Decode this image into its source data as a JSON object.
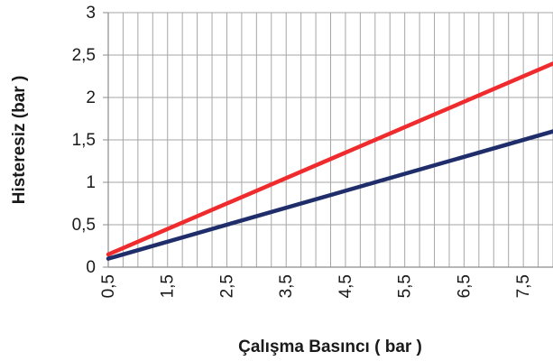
{
  "chart_data": {
    "type": "line",
    "xlabel": "Çalışma Basıncı ( bar )",
    "ylabel": "Histeresiz (bar )",
    "xlim": [
      0.5,
      8.0
    ],
    "ylim": [
      0,
      3
    ],
    "x_ticks": [
      0.5,
      1.5,
      2.5,
      3.5,
      4.5,
      5.5,
      6.5,
      7.5
    ],
    "x_tick_labels": [
      "0,5",
      "1,5",
      "2,5",
      "3,5",
      "4,5",
      "5,5",
      "6,5",
      "7,5"
    ],
    "x_minor_step": 0.25,
    "y_ticks": [
      0,
      0.5,
      1,
      1.5,
      2,
      2.5,
      3
    ],
    "y_tick_labels": [
      "0",
      "0,5",
      "1",
      "1,5",
      "2",
      "2,5",
      "3"
    ],
    "grid": true,
    "series": [
      {
        "color": "#ef2b2d",
        "x": [
          0.5,
          8.0
        ],
        "y": [
          0.15,
          2.4
        ]
      },
      {
        "color": "#1f2e6b",
        "x": [
          0.5,
          8.0
        ],
        "y": [
          0.1,
          1.6
        ]
      }
    ]
  }
}
